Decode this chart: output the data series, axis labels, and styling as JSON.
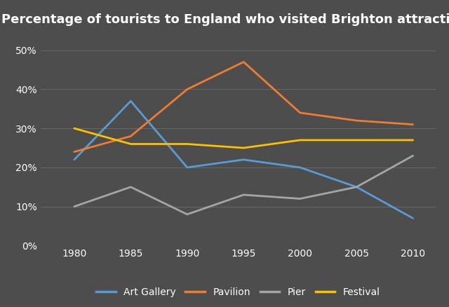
{
  "title": "Percentage of tourists to England who visited Brighton attractions",
  "years": [
    1980,
    1985,
    1990,
    1995,
    2000,
    2005,
    2010
  ],
  "series": {
    "Art Gallery": {
      "values": [
        22,
        37,
        20,
        22,
        20,
        15,
        7
      ],
      "color": "#5B9BD5",
      "linewidth": 2.0
    },
    "Pavilion": {
      "values": [
        24,
        28,
        40,
        47,
        34,
        32,
        31
      ],
      "color": "#ED7D31",
      "linewidth": 2.0
    },
    "Pier": {
      "values": [
        10,
        15,
        8,
        13,
        12,
        15,
        23
      ],
      "color": "#A5A5A5",
      "linewidth": 2.0
    },
    "Festival": {
      "values": [
        30,
        26,
        26,
        25,
        27,
        27,
        27
      ],
      "color": "#FFC000",
      "linewidth": 2.0
    }
  },
  "ylim": [
    0,
    55
  ],
  "yticks": [
    0,
    10,
    20,
    30,
    40,
    50
  ],
  "ytick_labels": [
    "0%",
    "10%",
    "20%",
    "30%",
    "40%",
    "50%"
  ],
  "xlim": [
    1977,
    2012
  ],
  "background_color": "#4d4d4d",
  "plot_bg_color": "#4d4d4d",
  "grid_color": "#666666",
  "text_color": "#ffffff",
  "title_fontsize": 13,
  "tick_fontsize": 10,
  "legend_fontsize": 10
}
